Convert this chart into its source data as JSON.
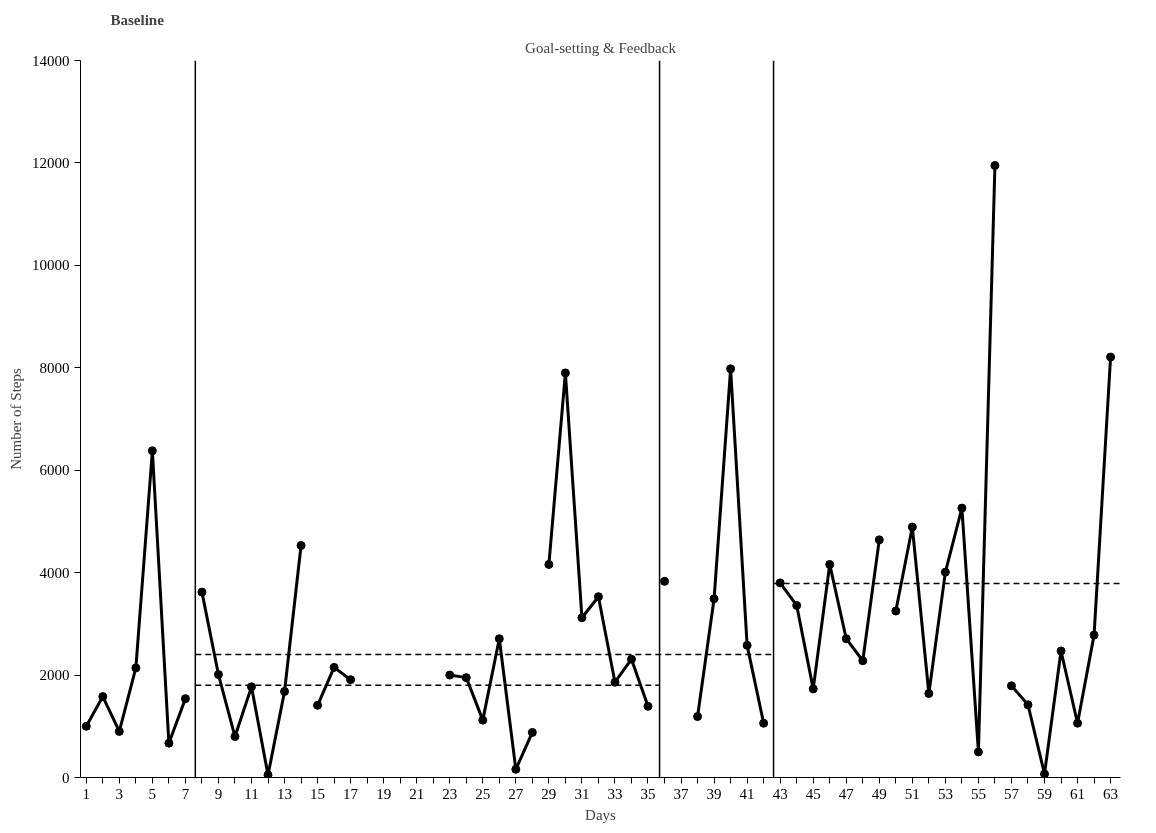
{
  "chart_data": {
    "type": "line",
    "xlabel": "Days",
    "ylabel": "Number of Steps",
    "annotations": [
      "Baseline",
      "Goal-setting & Feedback"
    ],
    "xlim": [
      0.65,
      63.6
    ],
    "ylim": [
      0,
      14000
    ],
    "xticks": [
      1,
      {
        "value": 2,
        "label": null
      },
      3,
      {
        "value": 4,
        "label": null
      },
      5,
      {
        "value": 6,
        "label": null
      },
      7,
      {
        "value": 8,
        "label": null
      },
      9,
      {
        "value": 10,
        "label": null
      },
      11,
      {
        "value": 12,
        "label": null
      },
      13,
      {
        "value": 14,
        "label": null
      },
      15,
      {
        "value": 16,
        "label": null
      },
      17,
      {
        "value": 18,
        "label": null
      },
      19,
      {
        "value": 20,
        "label": null
      },
      21,
      {
        "value": 22,
        "label": null
      },
      23,
      {
        "value": 24,
        "label": null
      },
      25,
      {
        "value": 26,
        "label": null
      },
      27,
      {
        "value": 28,
        "label": null
      },
      29,
      {
        "value": 30,
        "label": null
      },
      31,
      {
        "value": 32,
        "label": null
      },
      33,
      {
        "value": 34,
        "label": null
      },
      35,
      {
        "value": 36,
        "label": null
      },
      37,
      {
        "value": 38,
        "label": null
      },
      39,
      {
        "value": 40,
        "label": null
      },
      41,
      {
        "value": 42,
        "label": null
      },
      43,
      {
        "value": 44,
        "label": null
      },
      45,
      {
        "value": 46,
        "label": null
      },
      47,
      {
        "value": 48,
        "label": null
      },
      49,
      {
        "value": 50,
        "label": null
      },
      51,
      {
        "value": 52,
        "label": null
      },
      53,
      {
        "value": 54,
        "label": null
      },
      55,
      {
        "value": 56,
        "label": null
      },
      57,
      {
        "value": 58,
        "label": null
      },
      59,
      {
        "value": 60,
        "label": null
      },
      61,
      {
        "value": 62,
        "label": null
      },
      63
    ],
    "yticks": [
      0,
      2000,
      4000,
      6000,
      8000,
      10000,
      12000,
      14000
    ],
    "grid": false,
    "marker": "circle",
    "series": [
      {
        "color": "#000000",
        "x": [
          1,
          2,
          3,
          4,
          5,
          6,
          7
        ],
        "values": [
          1000,
          1580,
          900,
          2140,
          6380,
          670,
          1540
        ]
      },
      {
        "color": "#000000",
        "x": [
          8,
          9,
          10,
          11,
          12,
          13,
          14
        ],
        "values": [
          3620,
          2010,
          800,
          1770,
          50,
          1680,
          4530
        ]
      },
      {
        "color": "#000000",
        "x": [
          15,
          16,
          17
        ],
        "values": [
          1410,
          2150,
          1910
        ]
      },
      {
        "color": "#000000",
        "x": [
          23,
          24,
          25,
          26,
          27,
          28
        ],
        "values": [
          2000,
          1950,
          1120,
          2710,
          160,
          880
        ]
      },
      {
        "color": "#000000",
        "x": [
          29,
          30,
          31,
          32,
          33,
          34,
          35
        ],
        "values": [
          4160,
          7900,
          3120,
          3530,
          1860,
          2310,
          1390
        ]
      },
      {
        "color": "#000000",
        "x": [
          36
        ],
        "values": [
          3830
        ]
      },
      {
        "color": "#000000",
        "x": [
          38,
          39,
          40,
          41,
          42
        ],
        "values": [
          1190,
          3490,
          7980,
          2580,
          1060
        ]
      },
      {
        "color": "#000000",
        "x": [
          43,
          44,
          45,
          46,
          47,
          48,
          49
        ],
        "values": [
          3800,
          3360,
          1730,
          4160,
          2710,
          2280,
          4640
        ]
      },
      {
        "color": "#000000",
        "x": [
          50,
          51,
          52,
          53,
          54,
          55,
          56
        ],
        "values": [
          3250,
          4890,
          1640,
          4010,
          5260,
          500,
          11950
        ]
      },
      {
        "color": "#000000",
        "x": [
          57,
          58,
          59,
          60,
          61,
          62,
          63
        ],
        "values": [
          1790,
          1420,
          70,
          2470,
          1060,
          2780,
          8210
        ]
      },
      {
        "type": "line",
        "color": "#000000",
        "marker": "none",
        "line_style": "dashed",
        "x": [
          7.6,
          35.7
        ],
        "values": [
          1800,
          1800
        ]
      },
      {
        "type": "line",
        "color": "#000000",
        "marker": "none",
        "line_style": "dashed",
        "x": [
          7.6,
          42.6
        ],
        "values": [
          2400,
          2400
        ]
      },
      {
        "type": "line",
        "color": "#000000",
        "marker": "none",
        "line_style": "dashed",
        "x": [
          42.6,
          63.6
        ],
        "values": [
          3790,
          3790
        ]
      }
    ],
    "ref_lines": [
      {
        "axis": "x",
        "value": 7.6,
        "color": "#000000",
        "line_style": "solid"
      },
      {
        "axis": "x",
        "value": 35.7,
        "color": "#000000",
        "line_style": "solid"
      },
      {
        "axis": "x",
        "value": 42.6,
        "color": "#000000",
        "line_style": "solid"
      }
    ]
  }
}
